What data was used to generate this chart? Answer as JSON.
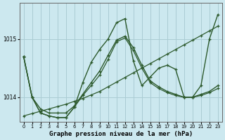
{
  "xlabel": "Graphe pression niveau de la mer (hPa)",
  "background_color": "#cce8ef",
  "grid_color": "#aaccd4",
  "line_color": "#2d5a2d",
  "ylim": [
    1013.58,
    1015.62
  ],
  "xlim": [
    -0.5,
    23.5
  ],
  "yticks": [
    1014,
    1015
  ],
  "xticks": [
    0,
    1,
    2,
    3,
    4,
    5,
    6,
    7,
    8,
    9,
    10,
    11,
    12,
    13,
    14,
    15,
    16,
    17,
    18,
    19,
    20,
    21,
    22,
    23
  ],
  "series": [
    {
      "y": [
        1014.7,
        1014.0,
        1013.8,
        1013.73,
        1013.73,
        1013.73,
        1013.85,
        1014.05,
        1014.25,
        1014.45,
        1014.72,
        1014.98,
        1015.05,
        1014.85,
        1014.55,
        1014.28,
        1014.18,
        1014.1,
        1014.05,
        1014.0,
        1014.0,
        1014.05,
        1014.1,
        1014.2
      ],
      "lw": 1.0
    },
    {
      "y": [
        1014.7,
        1014.0,
        1013.73,
        1013.68,
        1013.65,
        1013.65,
        1013.83,
        1014.03,
        1014.2,
        1014.38,
        1014.65,
        1014.95,
        1015.02,
        1014.8,
        1014.5,
        1014.25,
        1014.15,
        1014.08,
        1014.03,
        1014.0,
        1014.0,
        1014.03,
        1014.08,
        1014.15
      ],
      "lw": 0.9
    },
    {
      "y": [
        1014.7,
        1014.0,
        1013.73,
        1013.68,
        1013.65,
        1013.65,
        1013.83,
        1014.25,
        1014.6,
        1014.82,
        1015.0,
        1015.28,
        1015.35,
        1014.62,
        1014.2,
        1014.35,
        1014.5,
        1014.55,
        1014.48,
        1014.0,
        1014.0,
        1014.2,
        1015.0,
        1015.42
      ],
      "lw": 1.0
    },
    {
      "y": [
        1013.68,
        1013.72,
        1013.76,
        1013.8,
        1013.84,
        1013.88,
        1013.93,
        1013.98,
        1014.04,
        1014.1,
        1014.18,
        1014.26,
        1014.34,
        1014.42,
        1014.5,
        1014.58,
        1014.66,
        1014.74,
        1014.82,
        1014.9,
        1014.98,
        1015.06,
        1015.14,
        1015.22
      ],
      "lw": 0.9
    }
  ]
}
